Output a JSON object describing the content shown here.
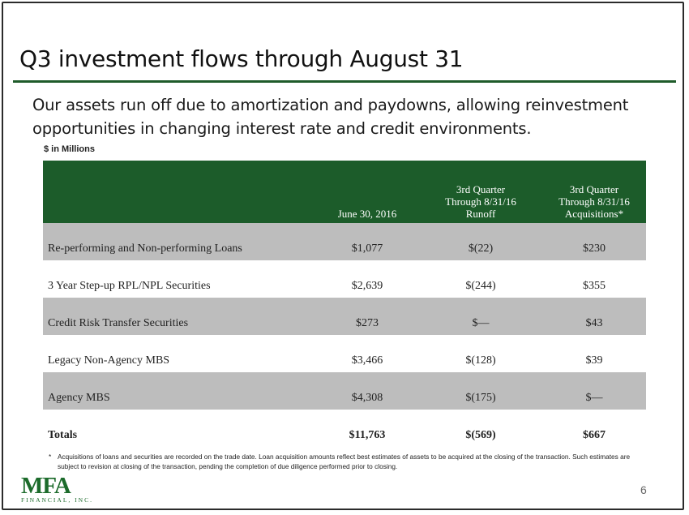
{
  "slide": {
    "title": "Q3 investment flows through August 31",
    "subtitle": "Our assets run off due to amortization and paydowns, allowing reinvestment opportunities in changing interest rate and credit environments.",
    "units_label": "$ in Millions",
    "page_number": "6",
    "colors": {
      "header_green": "#1c5c2a",
      "rule_green": "#1f5b2a",
      "row_shade": "#bdbdbd",
      "logo_green": "#1c6b2b"
    }
  },
  "table": {
    "headers": {
      "col1": [
        "June 30, 2016"
      ],
      "col2": [
        "3rd Quarter",
        "Through 8/31/16",
        "Runoff"
      ],
      "col3": [
        "3rd Quarter",
        "Through 8/31/16",
        "Acquisitions*"
      ]
    },
    "rows": [
      {
        "label": "Re-performing and Non-performing Loans",
        "june": "$1,077",
        "runoff": "$(22)",
        "acq": "$230"
      },
      {
        "label": "3 Year Step-up RPL/NPL Securities",
        "june": "$2,639",
        "runoff": "$(244)",
        "acq": "$355"
      },
      {
        "label": "Credit Risk Transfer Securities",
        "june": "$273",
        "runoff": "$—",
        "acq": "$43"
      },
      {
        "label": "Legacy Non-Agency MBS",
        "june": "$3,466",
        "runoff": "$(128)",
        "acq": "$39"
      },
      {
        "label": "Agency MBS",
        "june": "$4,308",
        "runoff": "$(175)",
        "acq": "$—"
      }
    ],
    "totals": {
      "label": "Totals",
      "june": "$11,763",
      "runoff": "$(569)",
      "acq": "$667"
    }
  },
  "footnote": {
    "marker": "*",
    "text": "Acquisitions of loans and securities are recorded on the trade date.  Loan acquisition amounts reflect best estimates of assets to be acquired at the closing of the transaction.  Such estimates are subject to revision at closing of the transaction, pending the completion of due diligence performed prior to closing."
  },
  "logo": {
    "mark": "MFA",
    "sub": "FINANCIAL, INC."
  }
}
